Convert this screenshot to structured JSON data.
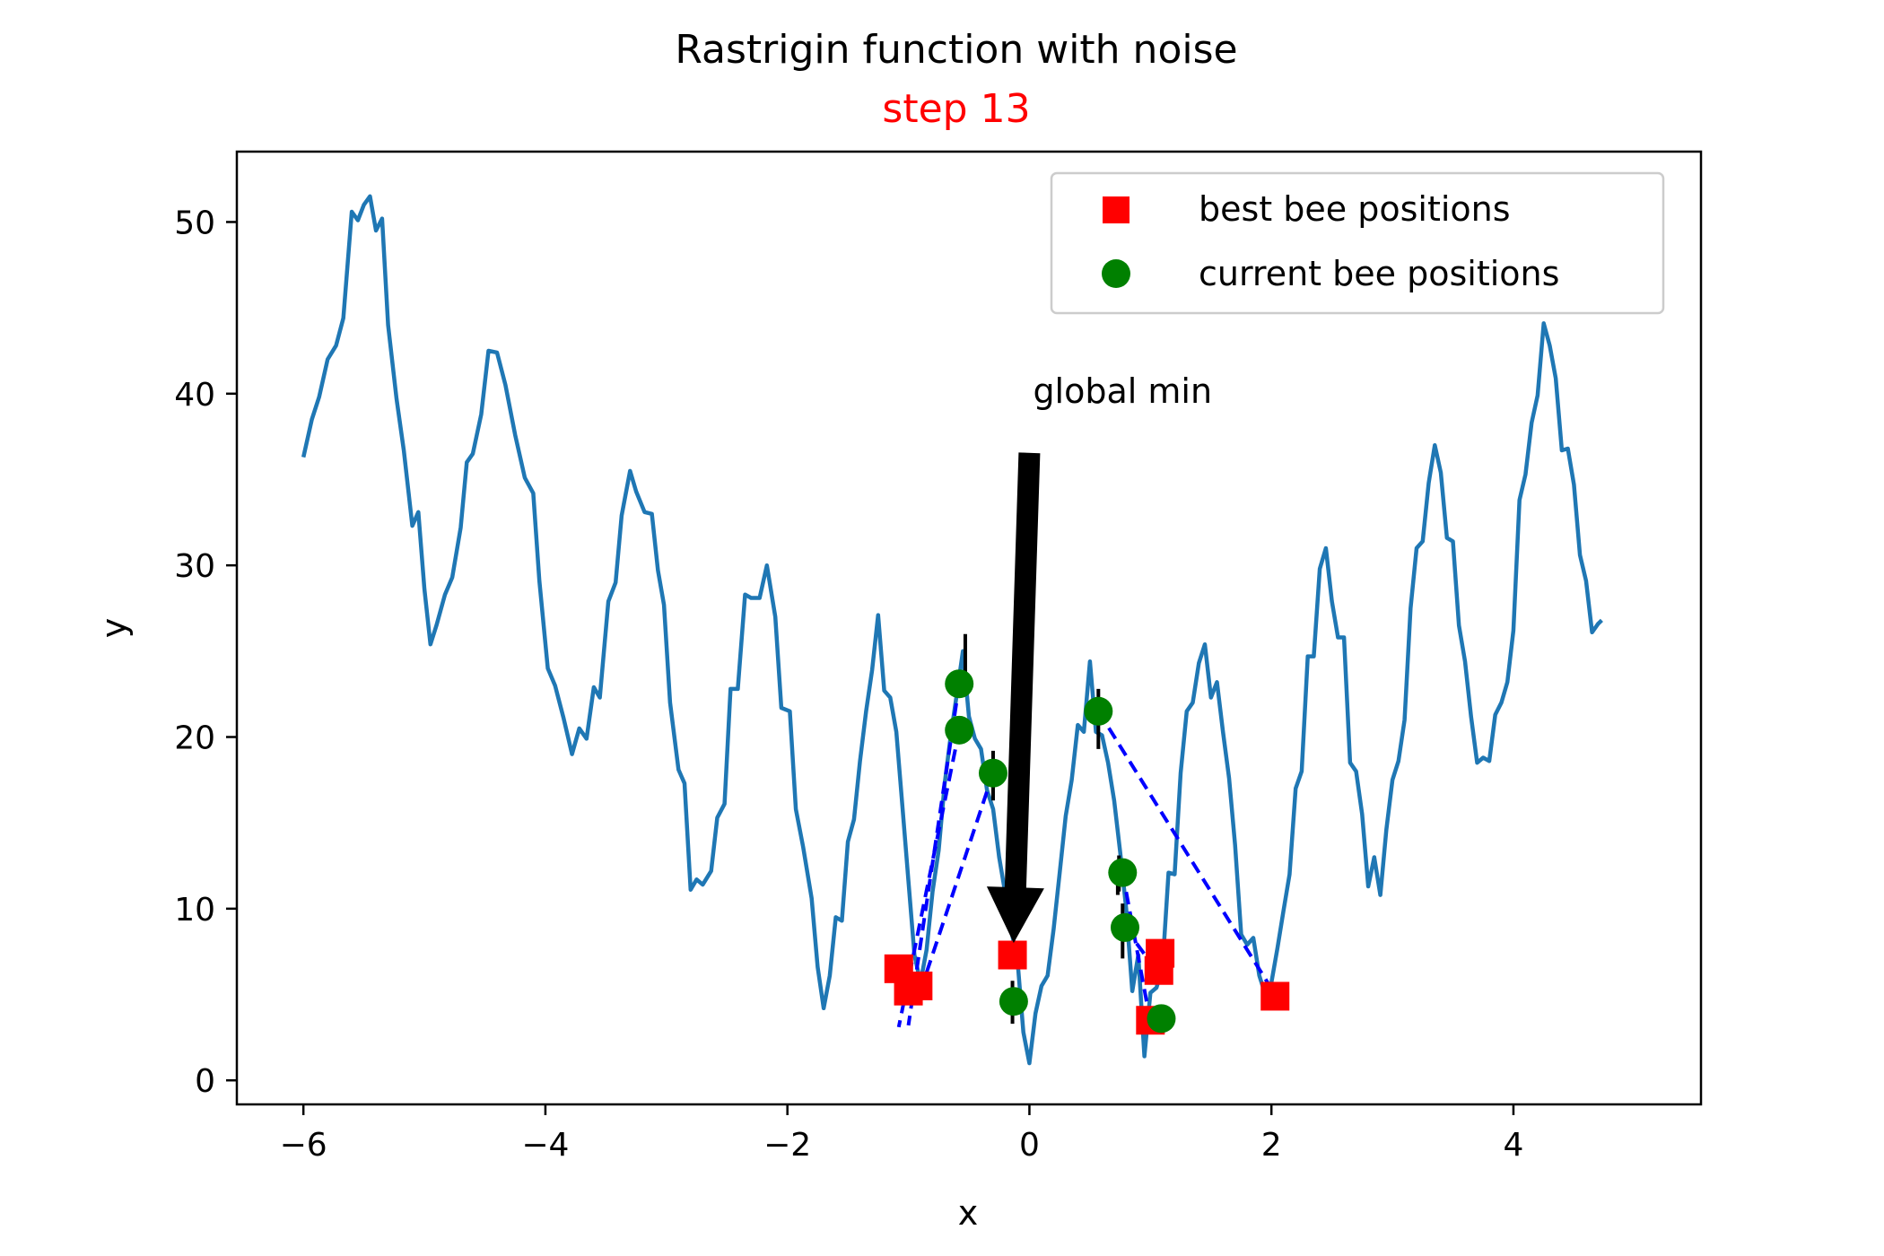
{
  "chart_data": {
    "type": "line",
    "title": "Rastrigin function with noise",
    "subtitle": "step 13",
    "xlabel": "x",
    "ylabel": "y",
    "xlim": [
      -6.55,
      5.55
    ],
    "ylim": [
      -1.4,
      54.1
    ],
    "xticks": [
      -6,
      -4,
      -2,
      0,
      2,
      4
    ],
    "yticks": [
      0,
      10,
      20,
      30,
      40,
      50
    ],
    "grid": false,
    "legend_placement": "upper right",
    "colors": {
      "curve": "#1f77b4",
      "best": "#ff0000",
      "current": "#008000",
      "trail": "#0000ff",
      "subtitle": "#ff0000",
      "arrow": "#000000"
    },
    "curve": {
      "points": [
        [
          -6.0,
          36.3
        ],
        [
          -5.93,
          38.5
        ],
        [
          -5.87,
          39.8
        ],
        [
          -5.8,
          42.0
        ],
        [
          -5.73,
          42.8
        ],
        [
          -5.67,
          44.4
        ],
        [
          -5.6,
          50.6
        ],
        [
          -5.55,
          50.1
        ],
        [
          -5.5,
          51.0
        ],
        [
          -5.45,
          51.5
        ],
        [
          -5.4,
          49.5
        ],
        [
          -5.35,
          50.2
        ],
        [
          -5.3,
          44.0
        ],
        [
          -5.23,
          39.7
        ],
        [
          -5.17,
          36.7
        ],
        [
          -5.1,
          32.3
        ],
        [
          -5.05,
          33.1
        ],
        [
          -5.0,
          28.6
        ],
        [
          -4.95,
          25.4
        ],
        [
          -4.9,
          26.5
        ],
        [
          -4.83,
          28.3
        ],
        [
          -4.77,
          29.3
        ],
        [
          -4.7,
          32.2
        ],
        [
          -4.65,
          36.0
        ],
        [
          -4.6,
          36.5
        ],
        [
          -4.53,
          38.8
        ],
        [
          -4.47,
          42.5
        ],
        [
          -4.4,
          42.4
        ],
        [
          -4.33,
          40.5
        ],
        [
          -4.25,
          37.6
        ],
        [
          -4.17,
          35.1
        ],
        [
          -4.1,
          34.2
        ],
        [
          -4.05,
          29.1
        ],
        [
          -3.98,
          24.0
        ],
        [
          -3.92,
          23.0
        ],
        [
          -3.85,
          21.1
        ],
        [
          -3.78,
          19.0
        ],
        [
          -3.72,
          20.5
        ],
        [
          -3.66,
          19.9
        ],
        [
          -3.6,
          22.9
        ],
        [
          -3.55,
          22.3
        ],
        [
          -3.48,
          27.9
        ],
        [
          -3.42,
          29.0
        ],
        [
          -3.37,
          32.9
        ],
        [
          -3.3,
          35.5
        ],
        [
          -3.25,
          34.3
        ],
        [
          -3.18,
          33.1
        ],
        [
          -3.12,
          33.0
        ],
        [
          -3.07,
          29.7
        ],
        [
          -3.02,
          27.7
        ],
        [
          -2.97,
          22.0
        ],
        [
          -2.9,
          18.1
        ],
        [
          -2.85,
          17.3
        ],
        [
          -2.8,
          11.1
        ],
        [
          -2.75,
          11.7
        ],
        [
          -2.7,
          11.4
        ],
        [
          -2.63,
          12.2
        ],
        [
          -2.58,
          15.3
        ],
        [
          -2.52,
          16.1
        ],
        [
          -2.47,
          22.8
        ],
        [
          -2.41,
          22.8
        ],
        [
          -2.35,
          28.3
        ],
        [
          -2.3,
          28.1
        ],
        [
          -2.23,
          28.1
        ],
        [
          -2.17,
          30.0
        ],
        [
          -2.1,
          27.0
        ],
        [
          -2.05,
          21.7
        ],
        [
          -1.98,
          21.5
        ],
        [
          -1.93,
          15.8
        ],
        [
          -1.87,
          13.6
        ],
        [
          -1.8,
          10.6
        ],
        [
          -1.75,
          6.6
        ],
        [
          -1.7,
          4.2
        ],
        [
          -1.65,
          6.1
        ],
        [
          -1.6,
          9.5
        ],
        [
          -1.55,
          9.3
        ],
        [
          -1.5,
          13.9
        ],
        [
          -1.45,
          15.2
        ],
        [
          -1.4,
          18.6
        ],
        [
          -1.35,
          21.5
        ],
        [
          -1.3,
          23.9
        ],
        [
          -1.25,
          27.1
        ],
        [
          -1.2,
          22.7
        ],
        [
          -1.15,
          22.3
        ],
        [
          -1.1,
          20.3
        ],
        [
          -1.05,
          16.0
        ],
        [
          -1.0,
          11.6
        ],
        [
          -0.95,
          7.3
        ],
        [
          -0.9,
          5.7
        ],
        [
          -0.85,
          7.6
        ],
        [
          -0.8,
          11.0
        ],
        [
          -0.75,
          13.4
        ],
        [
          -0.7,
          17.3
        ],
        [
          -0.65,
          20.1
        ],
        [
          -0.6,
          22.5
        ],
        [
          -0.55,
          25.0
        ],
        [
          -0.5,
          21.2
        ],
        [
          -0.45,
          19.9
        ],
        [
          -0.4,
          19.3
        ],
        [
          -0.35,
          16.9
        ],
        [
          -0.3,
          15.8
        ],
        [
          -0.25,
          13.0
        ],
        [
          -0.2,
          10.9
        ],
        [
          -0.15,
          8.7
        ],
        [
          -0.1,
          7.1
        ],
        [
          -0.05,
          2.8
        ],
        [
          0.0,
          1.0
        ],
        [
          0.05,
          3.9
        ],
        [
          0.1,
          5.5
        ],
        [
          0.15,
          6.1
        ],
        [
          0.2,
          8.8
        ],
        [
          0.25,
          12.1
        ],
        [
          0.3,
          15.4
        ],
        [
          0.35,
          17.5
        ],
        [
          0.4,
          20.7
        ],
        [
          0.45,
          20.3
        ],
        [
          0.5,
          24.4
        ],
        [
          0.55,
          20.3
        ],
        [
          0.6,
          20.1
        ],
        [
          0.65,
          18.5
        ],
        [
          0.7,
          16.3
        ],
        [
          0.75,
          13.3
        ],
        [
          0.8,
          10.0
        ],
        [
          0.85,
          5.2
        ],
        [
          0.9,
          7.3
        ],
        [
          0.95,
          1.4
        ],
        [
          1.0,
          5.1
        ],
        [
          1.05,
          5.4
        ],
        [
          1.1,
          6.6
        ],
        [
          1.15,
          12.1
        ],
        [
          1.2,
          12.0
        ],
        [
          1.25,
          17.9
        ],
        [
          1.3,
          21.5
        ],
        [
          1.35,
          22.0
        ],
        [
          1.4,
          24.3
        ],
        [
          1.45,
          25.4
        ],
        [
          1.5,
          22.3
        ],
        [
          1.55,
          23.2
        ],
        [
          1.6,
          20.3
        ],
        [
          1.65,
          17.6
        ],
        [
          1.7,
          13.7
        ],
        [
          1.75,
          8.5
        ],
        [
          1.8,
          7.9
        ],
        [
          1.85,
          8.3
        ],
        [
          1.9,
          6.1
        ],
        [
          1.95,
          5.0
        ],
        [
          2.0,
          5.7
        ],
        [
          2.05,
          7.7
        ],
        [
          2.1,
          9.9
        ],
        [
          2.15,
          12.0
        ],
        [
          2.2,
          17.0
        ],
        [
          2.25,
          18.0
        ],
        [
          2.3,
          24.7
        ],
        [
          2.35,
          24.7
        ],
        [
          2.4,
          29.8
        ],
        [
          2.45,
          31.0
        ],
        [
          2.5,
          27.9
        ],
        [
          2.55,
          25.8
        ],
        [
          2.6,
          25.8
        ],
        [
          2.65,
          18.5
        ],
        [
          2.7,
          18.0
        ],
        [
          2.75,
          15.5
        ],
        [
          2.8,
          11.3
        ],
        [
          2.85,
          13.0
        ],
        [
          2.9,
          10.8
        ],
        [
          2.95,
          14.6
        ],
        [
          3.0,
          17.5
        ],
        [
          3.05,
          18.6
        ],
        [
          3.1,
          21.0
        ],
        [
          3.15,
          27.5
        ],
        [
          3.2,
          31.0
        ],
        [
          3.25,
          31.4
        ],
        [
          3.3,
          34.8
        ],
        [
          3.35,
          37.0
        ],
        [
          3.4,
          35.4
        ],
        [
          3.45,
          31.6
        ],
        [
          3.5,
          31.4
        ],
        [
          3.55,
          26.5
        ],
        [
          3.6,
          24.4
        ],
        [
          3.65,
          21.2
        ],
        [
          3.7,
          18.5
        ],
        [
          3.75,
          18.8
        ],
        [
          3.8,
          18.6
        ],
        [
          3.85,
          21.3
        ],
        [
          3.9,
          22.0
        ],
        [
          3.95,
          23.2
        ],
        [
          4.0,
          26.2
        ],
        [
          4.05,
          33.8
        ],
        [
          4.1,
          35.3
        ],
        [
          4.15,
          38.3
        ],
        [
          4.2,
          39.9
        ],
        [
          4.25,
          44.1
        ],
        [
          4.3,
          42.8
        ],
        [
          4.35,
          40.9
        ],
        [
          4.4,
          36.7
        ],
        [
          4.45,
          36.8
        ],
        [
          4.5,
          34.7
        ],
        [
          4.55,
          30.6
        ],
        [
          4.6,
          29.1
        ],
        [
          4.65,
          26.1
        ],
        [
          4.7,
          26.6
        ],
        [
          4.73,
          26.8
        ]
      ]
    },
    "best_bee_positions": {
      "label": "best bee positions",
      "points": [
        [
          -1.08,
          6.5
        ],
        [
          -1.0,
          5.2
        ],
        [
          -0.92,
          5.5
        ],
        [
          -0.14,
          7.3
        ],
        [
          1.0,
          3.5
        ],
        [
          1.07,
          6.4
        ],
        [
          1.08,
          7.4
        ],
        [
          2.03,
          4.9
        ]
      ]
    },
    "current_bee_positions": {
      "label": "current bee positions",
      "points": [
        [
          -0.58,
          23.1
        ],
        [
          -0.58,
          20.4
        ],
        [
          -0.3,
          17.9
        ],
        [
          -0.13,
          4.6
        ],
        [
          0.57,
          21.5
        ],
        [
          0.77,
          12.1
        ],
        [
          0.79,
          8.9
        ],
        [
          1.09,
          3.6
        ]
      ]
    },
    "trails": [
      [
        [
          -0.58,
          20.4
        ],
        [
          -1.08,
          3.1
        ]
      ],
      [
        [
          -0.58,
          23.1
        ],
        [
          -1.0,
          3.2
        ]
      ],
      [
        [
          -0.3,
          17.9
        ],
        [
          -0.92,
          4.8
        ]
      ],
      [
        [
          0.57,
          21.5
        ],
        [
          2.03,
          5.0
        ]
      ],
      [
        [
          0.77,
          12.1
        ],
        [
          1.0,
          3.4
        ]
      ],
      [
        [
          0.79,
          8.9
        ],
        [
          1.07,
          6.2
        ]
      ]
    ],
    "error_ticks": [
      [
        -0.53,
        26.0,
        22.4
      ],
      [
        -0.3,
        19.2,
        16.3
      ],
      [
        -0.14,
        5.8,
        3.3
      ],
      [
        0.57,
        22.8,
        19.3
      ],
      [
        0.74,
        13.1,
        11.0
      ],
      [
        0.77,
        10.3,
        7.1
      ],
      [
        0.73,
        12.6,
        10.8
      ]
    ],
    "annotation": {
      "text": "global min",
      "xytext": [
        0.0,
        40.0
      ],
      "xy": [
        -0.13,
        8.0
      ]
    }
  }
}
